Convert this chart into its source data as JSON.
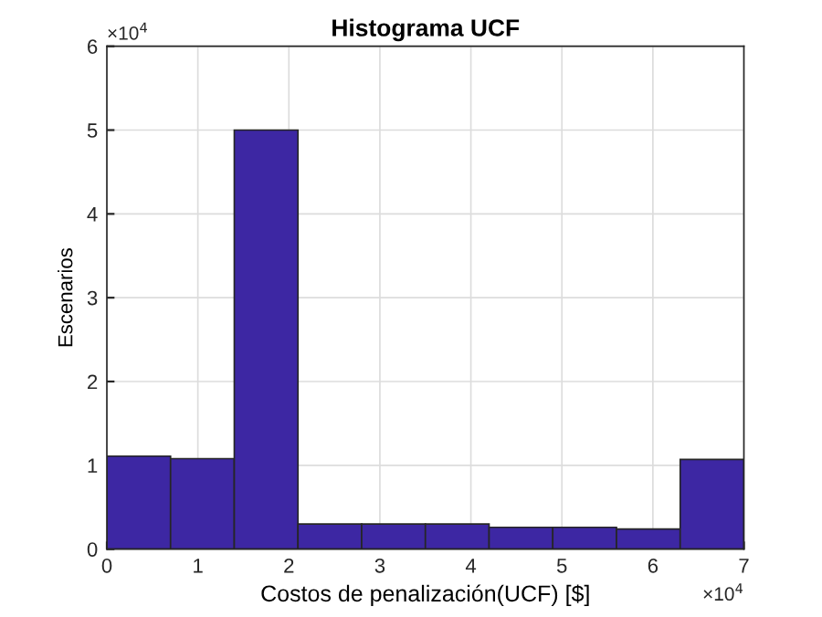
{
  "chart_data": {
    "type": "histogram",
    "title": "Histograma UCF",
    "xlabel": "Costos de penalización(UCF) [$]",
    "ylabel": "Escenarios",
    "bins": [
      0,
      0.7,
      1.4,
      2.1,
      2.8,
      3.5,
      4.2,
      4.9,
      5.6,
      6.3,
      7
    ],
    "values": [
      1.11,
      1.08,
      5.0,
      0.3,
      0.3,
      0.3,
      0.26,
      0.26,
      0.24,
      1.07
    ],
    "color": "#3d27a3",
    "xlim": [
      0,
      7
    ],
    "ylim": [
      0,
      6
    ],
    "xticks": [
      0,
      1,
      2,
      3,
      4,
      5,
      6,
      7
    ],
    "yticks": [
      0,
      1,
      2,
      3,
      4,
      5,
      6
    ],
    "annotations": [
      "×10$^{4}$",
      "×10$^{4}$"
    ],
    "grid": true
  }
}
